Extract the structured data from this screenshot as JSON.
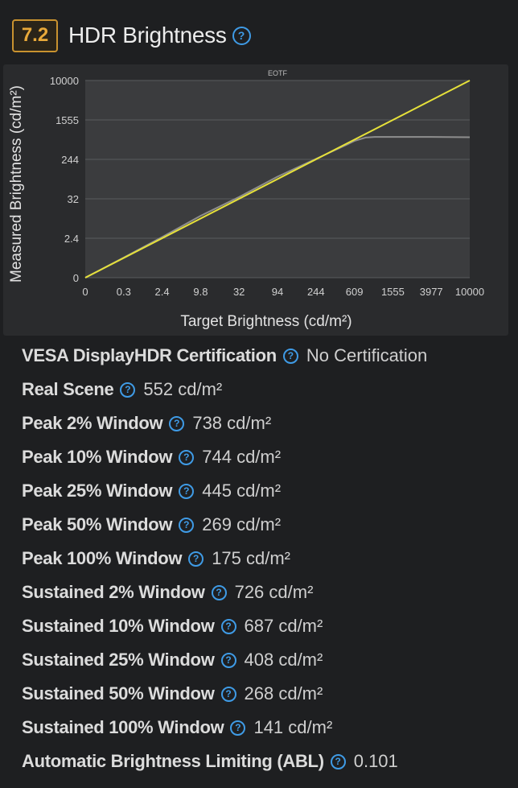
{
  "header": {
    "score": "7.2",
    "title": "HDR Brightness",
    "help_icon": "question-circle-icon"
  },
  "chart_data": {
    "type": "line",
    "title": "EOTF",
    "xlabel": "Target Brightness (cd/m²)",
    "ylabel": "Measured Brightness (cd/m²)",
    "x_ticks": [
      "0",
      "0.3",
      "2.4",
      "9.8",
      "32",
      "94",
      "244",
      "609",
      "1555",
      "3977",
      "10000"
    ],
    "y_ticks": [
      "0",
      "2.4",
      "32",
      "244",
      "1555",
      "10000"
    ],
    "series": [
      {
        "color": "#e6e13a",
        "x": [
          0,
          10000
        ],
        "y": [
          0,
          10000
        ]
      },
      {
        "color": "#8e8e8e",
        "x": [
          0,
          0.3,
          2.4,
          9.8,
          32,
          94,
          244,
          500,
          609,
          800,
          1000,
          1555,
          3977,
          10000
        ],
        "y": [
          0,
          0.35,
          2.6,
          10.5,
          35,
          100,
          250,
          480,
          580,
          680,
          700,
          700,
          700,
          690
        ]
      }
    ],
    "grid": true
  },
  "rows": [
    {
      "label": "VESA DisplayHDR Certification",
      "value": "No Certification"
    },
    {
      "label": "Real Scene",
      "value": "552 cd/m²"
    },
    {
      "label": "Peak 2% Window",
      "value": "738 cd/m²"
    },
    {
      "label": "Peak 10% Window",
      "value": "744 cd/m²"
    },
    {
      "label": "Peak 25% Window",
      "value": "445 cd/m²"
    },
    {
      "label": "Peak 50% Window",
      "value": "269 cd/m²"
    },
    {
      "label": "Peak 100% Window",
      "value": "175 cd/m²"
    },
    {
      "label": "Sustained 2% Window",
      "value": "726 cd/m²"
    },
    {
      "label": "Sustained 10% Window",
      "value": "687 cd/m²"
    },
    {
      "label": "Sustained 25% Window",
      "value": "408 cd/m²"
    },
    {
      "label": "Sustained 50% Window",
      "value": "268 cd/m²"
    },
    {
      "label": "Sustained 100% Window",
      "value": "141 cd/m²"
    },
    {
      "label": "Automatic Brightness Limiting (ABL)",
      "value": "0.101"
    }
  ]
}
